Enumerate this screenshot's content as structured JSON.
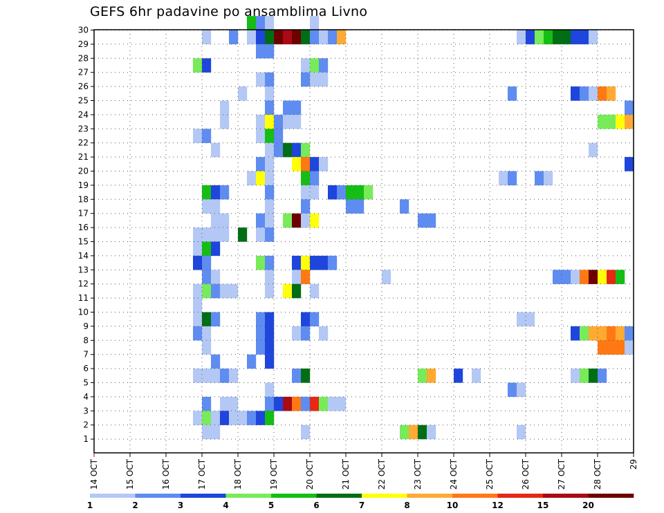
{
  "chart_data": {
    "type": "heatmap",
    "title": "GEFS 6hr padavine po ansamblima Livno",
    "x_tick_labels": [
      "14 OCT",
      "15 OCT",
      "16 OCT",
      "17 OCT",
      "18 OCT",
      "19 OCT",
      "20 OCT",
      "21 OCT",
      "22 OCT",
      "23 OCT",
      "24 OCT",
      "25 OCT",
      "26 OCT",
      "27 OCT",
      "28 OCT",
      "29"
    ],
    "y_tick_labels": [
      "1",
      "2",
      "3",
      "4",
      "5",
      "6",
      "7",
      "8",
      "9",
      "10",
      "11",
      "12",
      "13",
      "14",
      "15",
      "16",
      "17",
      "18",
      "19",
      "20",
      "21",
      "22",
      "23",
      "24",
      "25",
      "26",
      "27",
      "28",
      "29",
      "30"
    ],
    "time_step_hours": 6,
    "steps": 60,
    "ensemble_members": 30,
    "grid": true,
    "legend_position": "bottom",
    "colorbar": {
      "labels": [
        "1",
        "2",
        "3",
        "4",
        "5",
        "6",
        "7",
        "8",
        "10",
        "12",
        "15",
        "20"
      ],
      "colors": [
        "#b4c8f5",
        "#5f8cf0",
        "#1e46dc",
        "#78eb5a",
        "#14be14",
        "#006e14",
        "#ffff0a",
        "#ffaa32",
        "#ff7814",
        "#e62814",
        "#aa0a14",
        "#6e0000"
      ]
    },
    "palette": [
      "#b4c8f5",
      "#5f8cf0",
      "#1e46dc",
      "#78eb5a",
      "#14be14",
      "#006e14",
      "#ffff0a",
      "#ffaa32",
      "#ff7814",
      "#e62814",
      "#aa0a14",
      "#6e0000"
    ],
    "cells": [
      [
        17,
        30,
        4
      ],
      [
        18,
        30,
        1
      ],
      [
        19,
        30,
        0
      ],
      [
        24,
        30,
        0
      ],
      [
        12,
        29,
        0
      ],
      [
        15,
        29,
        1
      ],
      [
        17,
        29,
        0
      ],
      [
        18,
        29,
        2
      ],
      [
        19,
        29,
        5
      ],
      [
        20,
        29,
        11
      ],
      [
        21,
        29,
        10
      ],
      [
        22,
        29,
        11
      ],
      [
        23,
        29,
        5
      ],
      [
        24,
        29,
        1
      ],
      [
        25,
        29,
        0
      ],
      [
        26,
        29,
        1
      ],
      [
        27,
        29,
        7
      ],
      [
        47,
        29,
        0
      ],
      [
        48,
        29,
        2
      ],
      [
        49,
        29,
        3
      ],
      [
        50,
        29,
        4
      ],
      [
        51,
        29,
        5
      ],
      [
        52,
        29,
        5
      ],
      [
        53,
        29,
        2
      ],
      [
        54,
        29,
        2
      ],
      [
        55,
        29,
        0
      ],
      [
        18,
        28,
        1
      ],
      [
        19,
        28,
        1
      ],
      [
        11,
        27,
        3
      ],
      [
        12,
        27,
        2
      ],
      [
        23,
        27,
        0
      ],
      [
        24,
        27,
        3
      ],
      [
        25,
        27,
        1
      ],
      [
        18,
        26,
        0
      ],
      [
        19,
        26,
        1
      ],
      [
        23,
        26,
        1
      ],
      [
        24,
        26,
        0
      ],
      [
        25,
        26,
        0
      ],
      [
        16,
        25,
        0
      ],
      [
        19,
        25,
        0
      ],
      [
        46,
        25,
        1
      ],
      [
        53,
        25,
        2
      ],
      [
        54,
        25,
        1
      ],
      [
        55,
        25,
        0
      ],
      [
        56,
        25,
        8
      ],
      [
        57,
        25,
        7
      ],
      [
        14,
        24,
        0
      ],
      [
        19,
        24,
        1
      ],
      [
        21,
        24,
        1
      ],
      [
        22,
        24,
        1
      ],
      [
        59,
        24,
        1
      ],
      [
        14,
        23,
        0
      ],
      [
        18,
        23,
        0
      ],
      [
        19,
        23,
        6
      ],
      [
        20,
        23,
        1
      ],
      [
        21,
        23,
        0
      ],
      [
        22,
        23,
        0
      ],
      [
        56,
        23,
        3
      ],
      [
        57,
        23,
        3
      ],
      [
        58,
        23,
        6
      ],
      [
        59,
        23,
        7
      ],
      [
        11,
        22,
        0
      ],
      [
        12,
        22,
        1
      ],
      [
        18,
        22,
        0
      ],
      [
        19,
        22,
        4
      ],
      [
        20,
        22,
        1
      ],
      [
        13,
        21,
        0
      ],
      [
        19,
        21,
        0
      ],
      [
        20,
        21,
        1
      ],
      [
        21,
        21,
        5
      ],
      [
        22,
        21,
        2
      ],
      [
        23,
        21,
        3
      ],
      [
        55,
        21,
        0
      ],
      [
        18,
        20,
        1
      ],
      [
        19,
        20,
        0
      ],
      [
        22,
        20,
        6
      ],
      [
        23,
        20,
        8
      ],
      [
        24,
        20,
        2
      ],
      [
        25,
        20,
        0
      ],
      [
        59,
        20,
        2
      ],
      [
        17,
        19,
        0
      ],
      [
        18,
        19,
        6
      ],
      [
        19,
        19,
        0
      ],
      [
        23,
        19,
        4
      ],
      [
        24,
        19,
        1
      ],
      [
        45,
        19,
        0
      ],
      [
        46,
        19,
        1
      ],
      [
        49,
        19,
        1
      ],
      [
        50,
        19,
        0
      ],
      [
        12,
        18,
        4
      ],
      [
        13,
        18,
        2
      ],
      [
        14,
        18,
        1
      ],
      [
        19,
        18,
        1
      ],
      [
        23,
        18,
        0
      ],
      [
        24,
        18,
        0
      ],
      [
        26,
        18,
        2
      ],
      [
        27,
        18,
        1
      ],
      [
        28,
        18,
        4
      ],
      [
        29,
        18,
        4
      ],
      [
        30,
        18,
        3
      ],
      [
        12,
        17,
        0
      ],
      [
        13,
        17,
        0
      ],
      [
        19,
        17,
        0
      ],
      [
        23,
        17,
        1
      ],
      [
        28,
        17,
        1
      ],
      [
        29,
        17,
        1
      ],
      [
        34,
        17,
        1
      ],
      [
        13,
        16,
        0
      ],
      [
        14,
        16,
        0
      ],
      [
        18,
        16,
        1
      ],
      [
        19,
        16,
        0
      ],
      [
        21,
        16,
        3
      ],
      [
        22,
        16,
        11
      ],
      [
        23,
        16,
        0
      ],
      [
        24,
        16,
        6
      ],
      [
        36,
        16,
        1
      ],
      [
        37,
        16,
        1
      ],
      [
        11,
        15,
        0
      ],
      [
        12,
        15,
        0
      ],
      [
        13,
        15,
        0
      ],
      [
        14,
        15,
        0
      ],
      [
        16,
        15,
        5
      ],
      [
        18,
        15,
        0
      ],
      [
        19,
        15,
        1
      ],
      [
        11,
        14,
        0
      ],
      [
        12,
        14,
        4
      ],
      [
        13,
        14,
        2
      ],
      [
        11,
        13,
        2
      ],
      [
        12,
        13,
        1
      ],
      [
        18,
        13,
        3
      ],
      [
        19,
        13,
        1
      ],
      [
        22,
        13,
        2
      ],
      [
        23,
        13,
        6
      ],
      [
        24,
        13,
        2
      ],
      [
        25,
        13,
        2
      ],
      [
        26,
        13,
        1
      ],
      [
        12,
        12,
        1
      ],
      [
        13,
        12,
        0
      ],
      [
        19,
        12,
        0
      ],
      [
        22,
        12,
        0
      ],
      [
        23,
        12,
        8
      ],
      [
        32,
        12,
        0
      ],
      [
        51,
        12,
        1
      ],
      [
        52,
        12,
        1
      ],
      [
        53,
        12,
        0
      ],
      [
        54,
        12,
        8
      ],
      [
        55,
        12,
        11
      ],
      [
        56,
        12,
        6
      ],
      [
        57,
        12,
        9
      ],
      [
        58,
        12,
        4
      ],
      [
        11,
        11,
        0
      ],
      [
        12,
        11,
        3
      ],
      [
        13,
        11,
        1
      ],
      [
        14,
        11,
        0
      ],
      [
        15,
        11,
        0
      ],
      [
        19,
        11,
        0
      ],
      [
        21,
        11,
        6
      ],
      [
        22,
        11,
        5
      ],
      [
        24,
        11,
        0
      ],
      [
        11,
        10,
        0
      ],
      [
        11,
        9,
        0
      ],
      [
        12,
        9,
        5
      ],
      [
        13,
        9,
        1
      ],
      [
        18,
        9,
        1
      ],
      [
        19,
        9,
        2
      ],
      [
        23,
        9,
        2
      ],
      [
        24,
        9,
        1
      ],
      [
        47,
        9,
        0
      ],
      [
        48,
        9,
        0
      ],
      [
        11,
        8,
        1
      ],
      [
        12,
        8,
        0
      ],
      [
        18,
        8,
        1
      ],
      [
        19,
        8,
        2
      ],
      [
        22,
        8,
        0
      ],
      [
        23,
        8,
        1
      ],
      [
        25,
        8,
        0
      ],
      [
        53,
        8,
        2
      ],
      [
        54,
        8,
        3
      ],
      [
        55,
        8,
        7
      ],
      [
        56,
        8,
        7
      ],
      [
        57,
        8,
        8
      ],
      [
        58,
        8,
        7
      ],
      [
        59,
        8,
        1
      ],
      [
        12,
        7,
        0
      ],
      [
        18,
        7,
        1
      ],
      [
        19,
        7,
        2
      ],
      [
        56,
        7,
        8
      ],
      [
        57,
        7,
        8
      ],
      [
        58,
        7,
        8
      ],
      [
        59,
        7,
        0
      ],
      [
        13,
        6,
        1
      ],
      [
        17,
        6,
        1
      ],
      [
        19,
        6,
        2
      ],
      [
        11,
        5,
        0
      ],
      [
        12,
        5,
        0
      ],
      [
        13,
        5,
        0
      ],
      [
        14,
        5,
        1
      ],
      [
        15,
        5,
        0
      ],
      [
        22,
        5,
        1
      ],
      [
        23,
        5,
        5
      ],
      [
        36,
        5,
        3
      ],
      [
        37,
        5,
        7
      ],
      [
        40,
        5,
        2
      ],
      [
        42,
        5,
        0
      ],
      [
        53,
        5,
        0
      ],
      [
        54,
        5,
        3
      ],
      [
        55,
        5,
        5
      ],
      [
        56,
        5,
        1
      ],
      [
        19,
        4,
        0
      ],
      [
        46,
        4,
        1
      ],
      [
        47,
        4,
        0
      ],
      [
        12,
        3,
        1
      ],
      [
        14,
        3,
        0
      ],
      [
        15,
        3,
        0
      ],
      [
        19,
        3,
        1
      ],
      [
        20,
        3,
        2
      ],
      [
        21,
        3,
        10
      ],
      [
        22,
        3,
        8
      ],
      [
        23,
        3,
        1
      ],
      [
        24,
        3,
        9
      ],
      [
        25,
        3,
        3
      ],
      [
        26,
        3,
        0
      ],
      [
        27,
        3,
        0
      ],
      [
        11,
        2,
        0
      ],
      [
        12,
        2,
        3
      ],
      [
        13,
        2,
        0
      ],
      [
        14,
        2,
        2
      ],
      [
        15,
        2,
        0
      ],
      [
        16,
        2,
        0
      ],
      [
        17,
        2,
        1
      ],
      [
        18,
        2,
        2
      ],
      [
        19,
        2,
        4
      ],
      [
        12,
        1,
        0
      ],
      [
        13,
        1,
        0
      ],
      [
        23,
        1,
        0
      ],
      [
        34,
        1,
        3
      ],
      [
        35,
        1,
        7
      ],
      [
        36,
        1,
        5
      ],
      [
        37,
        1,
        0
      ],
      [
        47,
        1,
        0
      ]
    ]
  }
}
